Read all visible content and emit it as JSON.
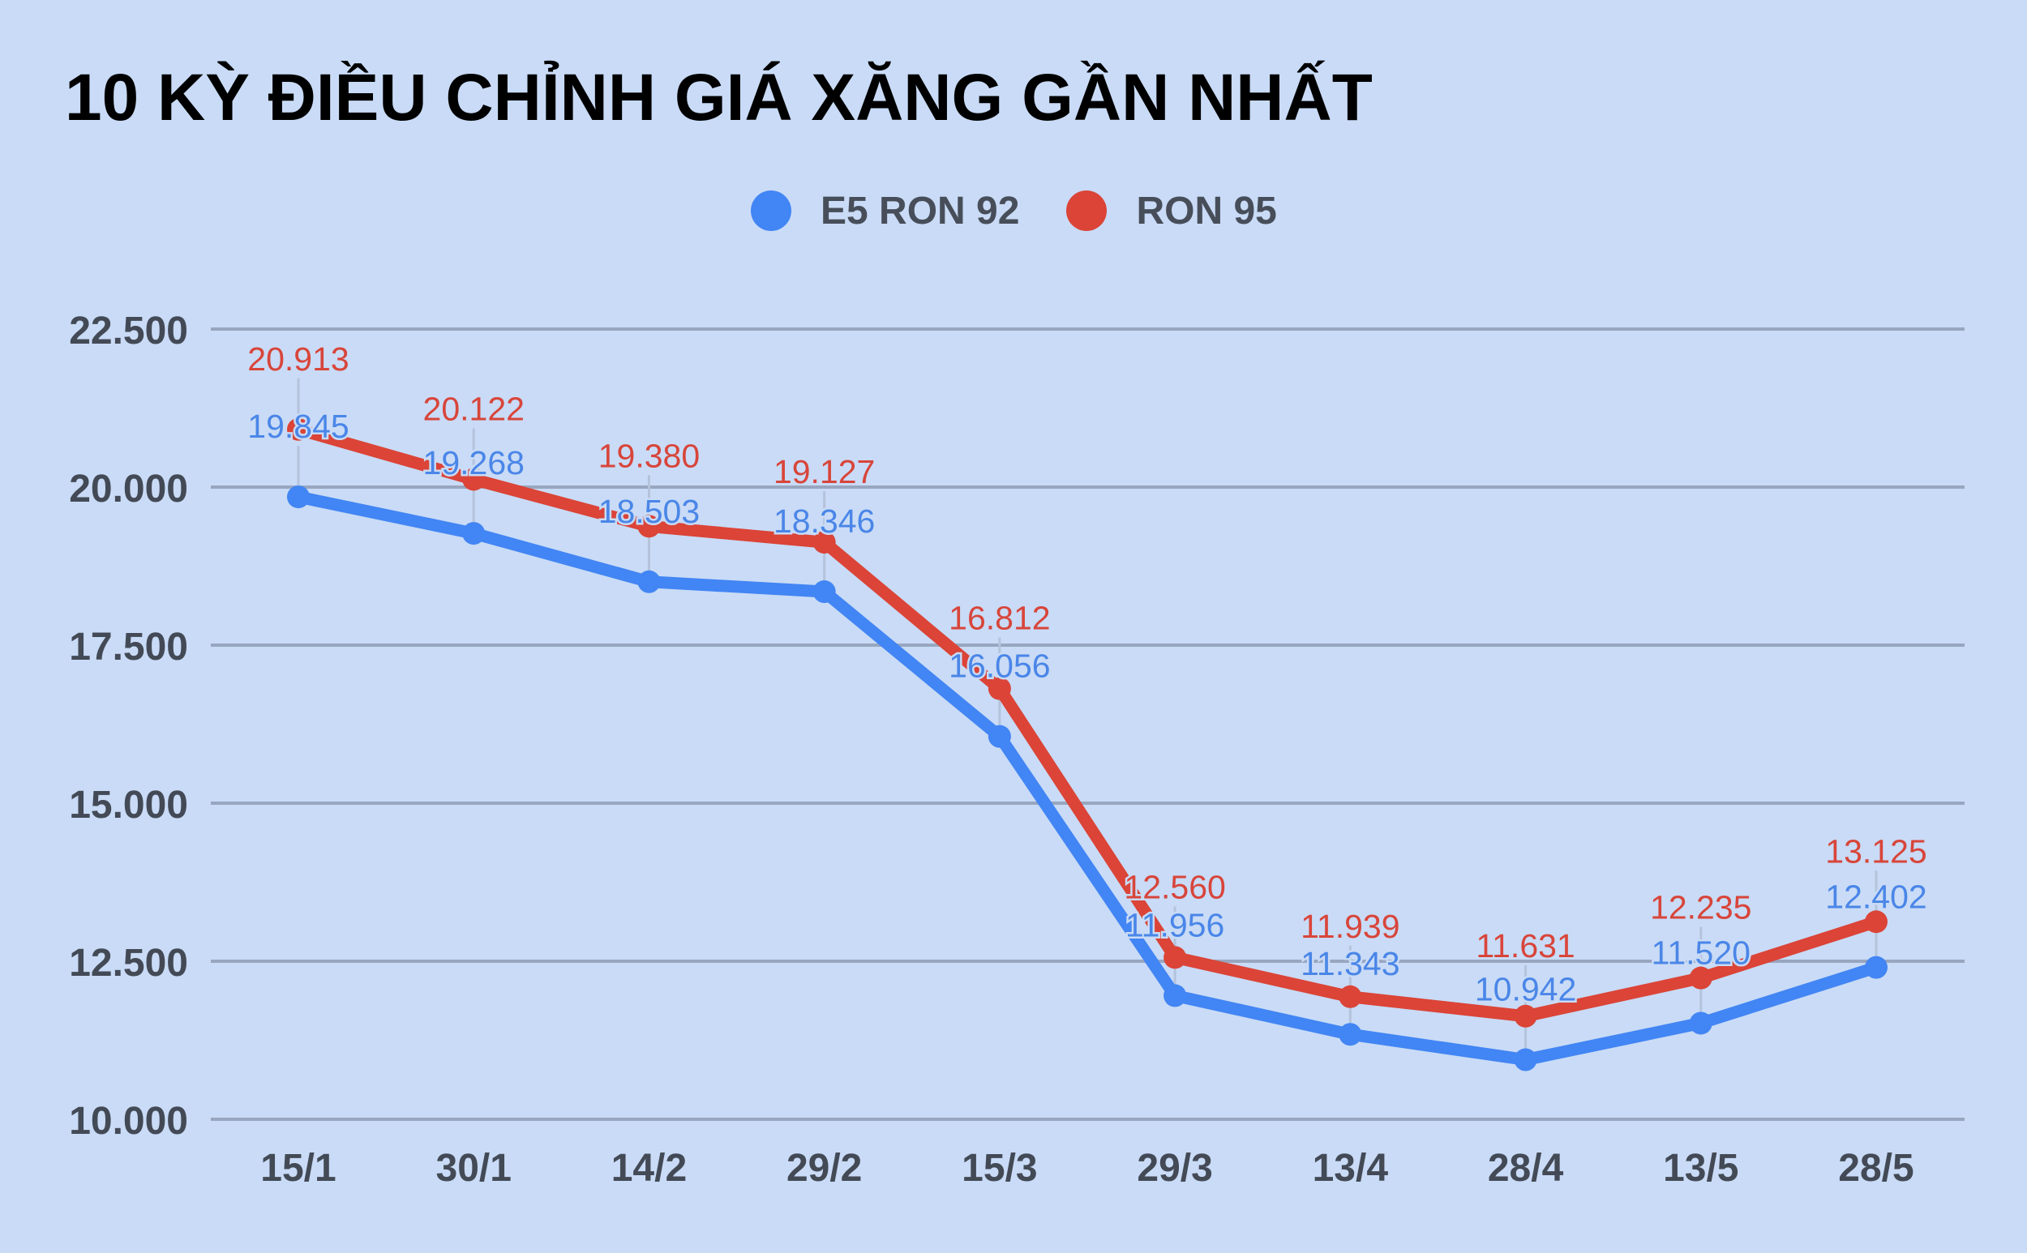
{
  "title": "10 KỲ ĐIỀU CHỈNH GIÁ XĂNG GẦN NHẤT",
  "legend": [
    {
      "label": "E5 RON 92",
      "color": "#4285f4"
    },
    {
      "label": "RON 95",
      "color": "#db4437"
    }
  ],
  "colors": {
    "background": "#c9dbf6",
    "gridline": "#98a6bf",
    "leader": "#b4c3db",
    "axis_text": "#434a56",
    "blue_series": "#4285f4",
    "red_series": "#db4437",
    "blue_label": "#4a86e8",
    "red_label": "#d8453a"
  },
  "chart_data": {
    "type": "line",
    "title": "10 KỲ ĐIỀU CHỈNH GIÁ XĂNG GẦN NHẤT",
    "xlabel": "",
    "ylabel": "",
    "categories": [
      "15/1",
      "30/1",
      "14/2",
      "29/2",
      "15/3",
      "29/3",
      "13/4",
      "28/4",
      "13/5",
      "28/5"
    ],
    "series": [
      {
        "name": "E5 RON 92",
        "color": "#4285f4",
        "values": [
          19845,
          19268,
          18503,
          18346,
          16056,
          11956,
          11343,
          10942,
          11520,
          12402
        ],
        "labels": [
          "19.845",
          "19.268",
          "18.503",
          "18.346",
          "16.056",
          "11.956",
          "11.343",
          "10.942",
          "11.520",
          "12.402"
        ]
      },
      {
        "name": "RON 95",
        "color": "#db4437",
        "values": [
          20913,
          20122,
          19380,
          19127,
          16812,
          12560,
          11939,
          11631,
          12235,
          13125
        ],
        "labels": [
          "20.913",
          "20.122",
          "19.380",
          "19.127",
          "16.812",
          "12.560",
          "11.939",
          "11.631",
          "12.235",
          "13.125"
        ]
      }
    ],
    "ylim": [
      10000,
      22500
    ],
    "yticks": [
      10000,
      12500,
      15000,
      17500,
      20000,
      22500
    ],
    "ytick_labels": [
      "10.000",
      "12.500",
      "15.000",
      "17.500",
      "20.000",
      "22.500"
    ],
    "grid": true,
    "legend_position": "top",
    "data_labels": true
  }
}
